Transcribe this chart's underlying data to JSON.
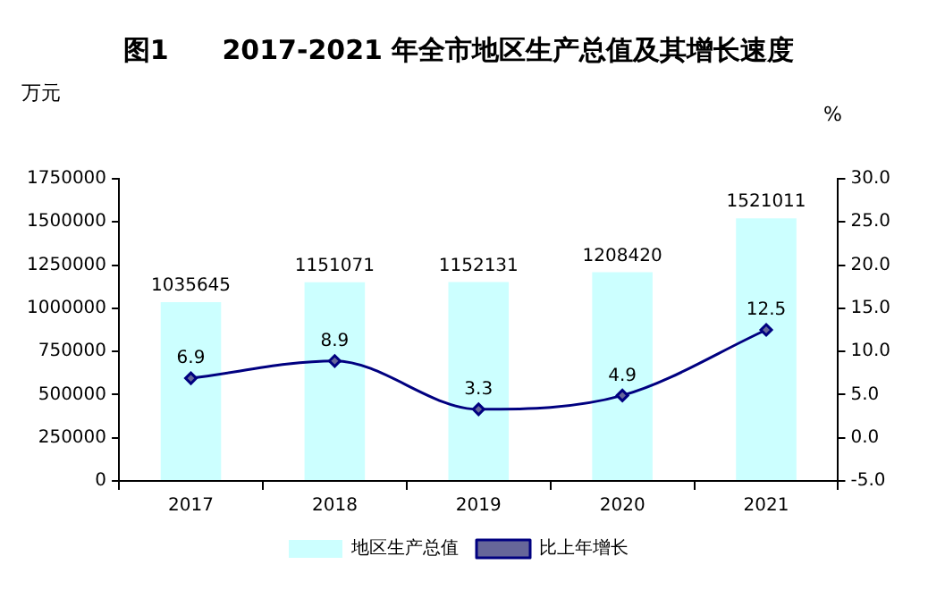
{
  "chart_data": {
    "type": "bar",
    "title": "图1　　2017-2021 年全市地区生产总值及其增长速度",
    "ylabel": "万元",
    "y2label": "%",
    "categories": [
      "2017",
      "2018",
      "2019",
      "2020",
      "2021"
    ],
    "series": [
      {
        "name": "地区生产总值",
        "color": "#ccffff",
        "values": [
          1035645,
          1151071,
          1152131,
          1208420,
          1521011
        ]
      },
      {
        "name": "比上年增长",
        "type": "line",
        "axis": "y2",
        "color": "#000080",
        "marker": "diamond",
        "values": [
          6.9,
          8.9,
          3.3,
          4.9,
          12.5
        ]
      }
    ],
    "ylim": [
      0,
      1750000
    ],
    "yticks": [
      0,
      250000,
      500000,
      750000,
      1000000,
      1250000,
      1500000,
      1750000
    ],
    "y2lim": [
      -5,
      30
    ],
    "y2ticks": [
      {
        "value": -5,
        "label": "-5.0"
      },
      {
        "value": 0,
        "label": "0.0"
      },
      {
        "value": 5,
        "label": "5.0"
      },
      {
        "value": 10,
        "label": "10.0"
      },
      {
        "value": 15,
        "label": "15.0"
      },
      {
        "value": 20,
        "label": "20.0"
      },
      {
        "value": 25,
        "label": "25.0"
      },
      {
        "value": 30,
        "label": "30.0"
      }
    ],
    "data_labels": true,
    "grid": false,
    "legend": "bottom"
  }
}
